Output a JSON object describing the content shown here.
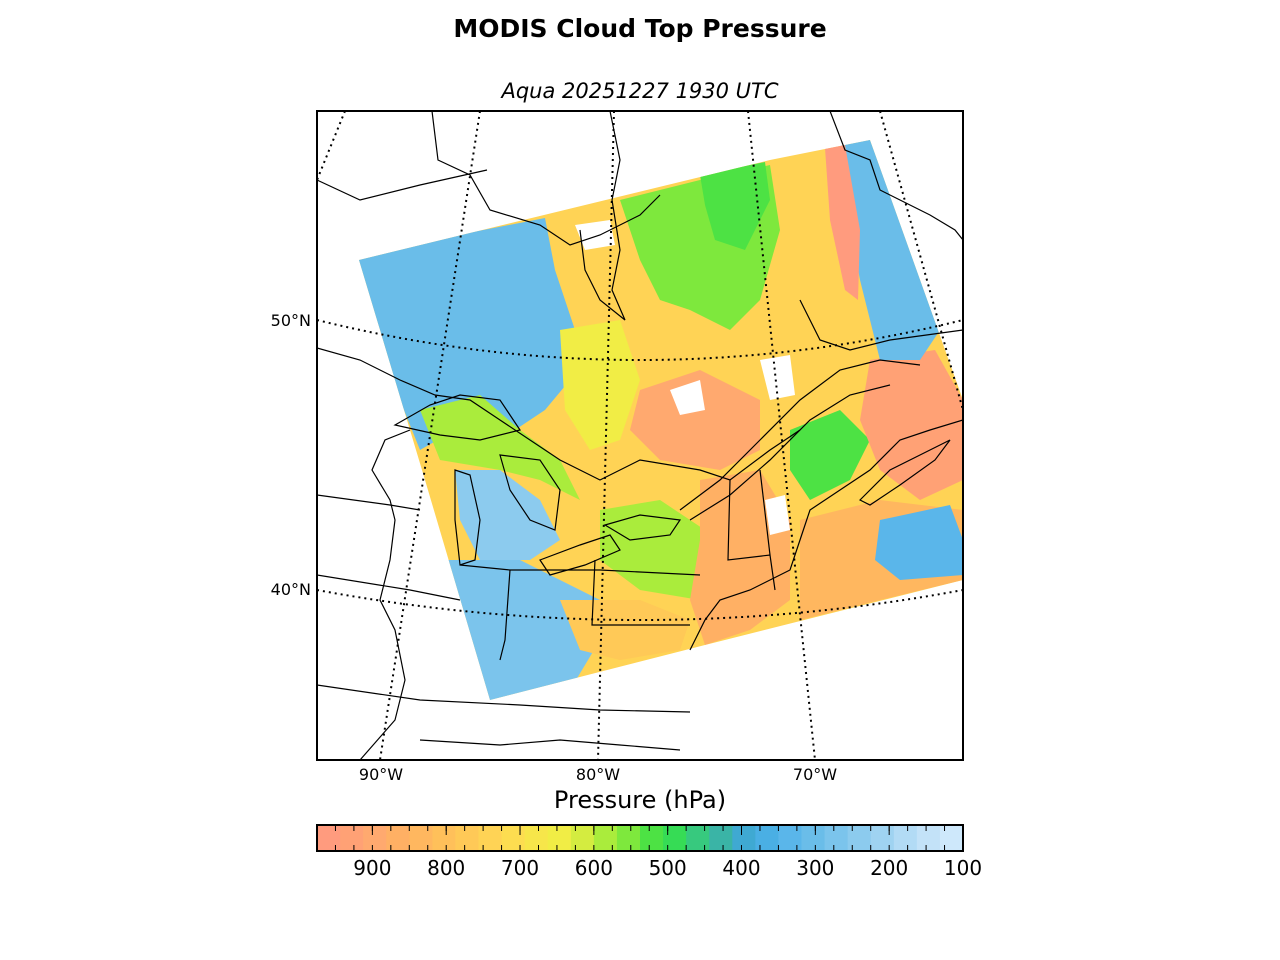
{
  "title": "MODIS Cloud Top Pressure",
  "subtitle": "Aqua 20251227 1930 UTC",
  "map": {
    "latitude_labels": [
      "50°N",
      "40°N"
    ],
    "longitude_labels": [
      "90°W",
      "80°W",
      "70°W"
    ],
    "graticule_style": "dotted",
    "features": [
      "coastlines",
      "country-borders",
      "state-province-borders",
      "great-lakes"
    ],
    "swath_background": "white"
  },
  "colorbar": {
    "label": "Pressure (hPa)",
    "tick_labels": [
      "900",
      "800",
      "700",
      "600",
      "500",
      "400",
      "300",
      "200",
      "100"
    ],
    "tick_values": [
      900,
      800,
      700,
      600,
      500,
      400,
      300,
      200,
      100
    ],
    "range": [
      975,
      100
    ],
    "colors": [
      "#ff9b7e",
      "#ffa175",
      "#ffa96f",
      "#ffb064",
      "#ffb75f",
      "#ffc05a",
      "#ffc957",
      "#ffd355",
      "#fddd50",
      "#f7e64a",
      "#f1ed45",
      "#d4ec40",
      "#aaec3c",
      "#7ee83d",
      "#4de244",
      "#36dc55",
      "#37c97e",
      "#3ab4a6",
      "#3fa9d2",
      "#4aafe4",
      "#5ab6ea",
      "#6abde9",
      "#7bc4ec",
      "#8ccbee",
      "#9fd3f1",
      "#b2dbf5",
      "#c3e2f8",
      "#cee8fb"
    ]
  },
  "legend_colors": {
    "low_clouds": "#ff9b7e",
    "mid_low": "#f1ed45",
    "mid": "#4de244",
    "high": "#5ab6ea",
    "very_high": "#cee8fb"
  }
}
